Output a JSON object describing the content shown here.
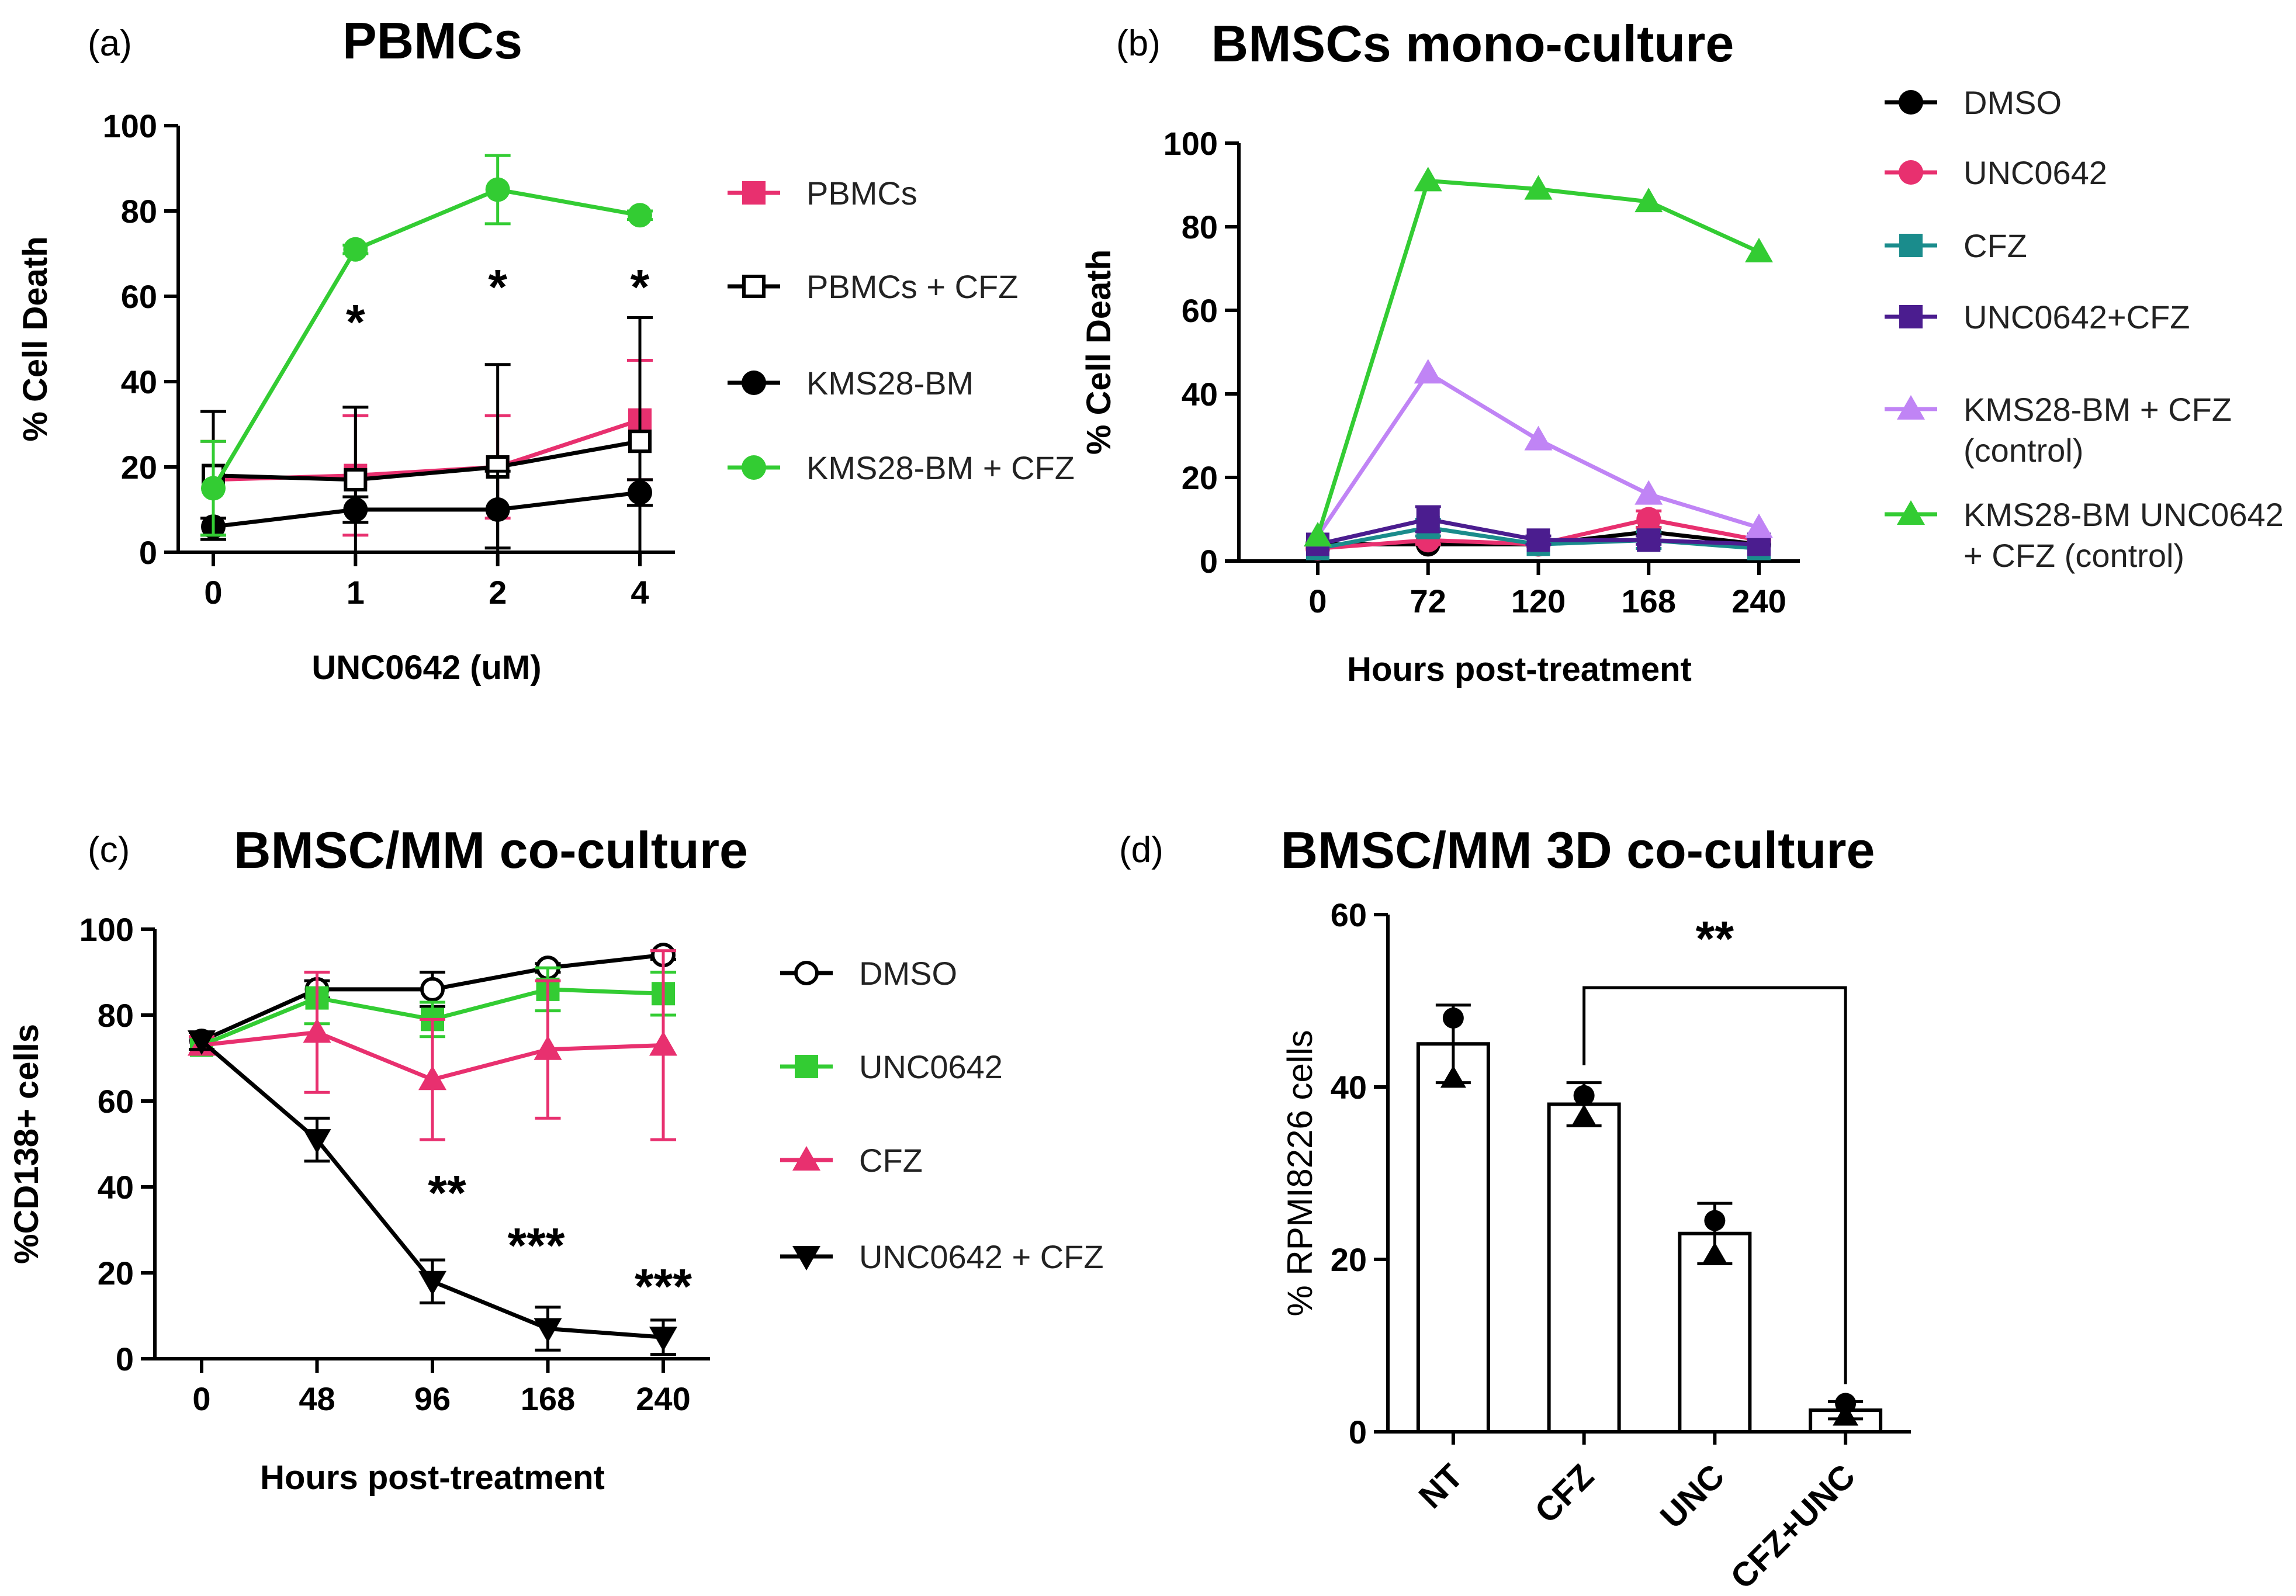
{
  "chart_data": [
    {
      "panel_label": "(a)",
      "type": "line",
      "title": "PBMCs",
      "xlabel": "UNC0642 (uM)",
      "ylabel": "% Cell Death",
      "categories": [
        "0",
        "1",
        "2",
        "4"
      ],
      "ylim": [
        0,
        100
      ],
      "yticks": [
        "0",
        "20",
        "40",
        "60",
        "80",
        "100"
      ],
      "series": [
        {
          "name": "PBMCs",
          "color": "#e8306f",
          "marker": "square",
          "values": [
            17,
            18,
            20,
            31
          ],
          "errors": [
            9,
            14,
            12,
            14
          ]
        },
        {
          "name": "PBMCs + CFZ",
          "color": "#000000",
          "marker": "open-square",
          "values": [
            18,
            17,
            20,
            26
          ],
          "errors": [
            15,
            17,
            24,
            29
          ]
        },
        {
          "name": "KMS28-BM",
          "color": "#000000",
          "marker": "circle",
          "values": [
            6,
            10,
            10,
            14
          ],
          "errors": [
            2,
            3,
            9,
            3
          ]
        },
        {
          "name": "KMS28-BM + CFZ",
          "color": "#33cc33",
          "marker": "circle",
          "values": [
            15,
            71,
            85,
            79
          ],
          "errors": [
            11,
            1,
            8,
            1
          ]
        }
      ],
      "annotations": [
        {
          "text": "*",
          "category": "1"
        },
        {
          "text": "*",
          "category": "2"
        },
        {
          "text": "*",
          "category": "4"
        }
      ]
    },
    {
      "panel_label": "(b)",
      "type": "line",
      "title": "BMSCs mono-culture",
      "xlabel": "Hours post-treatment",
      "ylabel": "% Cell Death",
      "categories": [
        "0",
        "72",
        "120",
        "168",
        "240"
      ],
      "ylim": [
        0,
        100
      ],
      "yticks": [
        "0",
        "20",
        "40",
        "60",
        "80",
        "100"
      ],
      "series": [
        {
          "name": "DMSO",
          "color": "#000000",
          "marker": "circle",
          "values": [
            4,
            4,
            4,
            7,
            4
          ],
          "errors": [
            0,
            0,
            0,
            1,
            0
          ]
        },
        {
          "name": "UNC0642",
          "color": "#e8306f",
          "marker": "circle",
          "values": [
            3,
            5,
            4,
            10,
            5
          ],
          "errors": [
            0,
            1,
            0,
            2,
            0
          ]
        },
        {
          "name": "CFZ",
          "color": "#1a8c8c",
          "marker": "square",
          "values": [
            3,
            8,
            4,
            5,
            3
          ],
          "errors": [
            0,
            2,
            0,
            2,
            0
          ]
        },
        {
          "name": "UNC0642+CFZ",
          "color": "#4b1d8f",
          "marker": "square",
          "values": [
            4,
            10,
            5,
            5,
            4
          ],
          "errors": [
            0,
            3,
            1,
            1,
            0
          ]
        },
        {
          "name": "KMS28-BM + CFZ",
          "name_line2": "(control)",
          "color": "#c084f5",
          "marker": "triangle",
          "values": [
            6,
            45,
            29,
            16,
            8
          ],
          "errors": [
            0,
            0,
            0,
            0,
            0
          ]
        },
        {
          "name": "KMS28-BM UNC0642",
          "name_line2": "+ CFZ (control)",
          "color": "#33cc33",
          "marker": "triangle",
          "values": [
            6,
            91,
            89,
            86,
            74
          ],
          "errors": [
            0,
            0,
            0,
            0,
            0
          ]
        }
      ]
    },
    {
      "panel_label": "(c)",
      "type": "line",
      "title": "BMSC/MM co-culture",
      "xlabel": "Hours post-treatment",
      "ylabel": "%CD138+ cells",
      "categories": [
        "0",
        "48",
        "96",
        "168",
        "240"
      ],
      "ylim": [
        0,
        100
      ],
      "yticks": [
        "0",
        "20",
        "40",
        "60",
        "80",
        "100"
      ],
      "series": [
        {
          "name": "DMSO",
          "color": "#000000",
          "marker": "open-circle",
          "values": [
            74,
            86,
            86,
            91,
            94
          ],
          "errors": [
            2,
            2,
            4,
            1,
            1
          ]
        },
        {
          "name": "UNC0642",
          "color": "#33cc33",
          "marker": "square",
          "values": [
            73,
            84,
            79,
            86,
            85
          ],
          "errors": [
            2,
            6,
            4,
            5,
            5
          ]
        },
        {
          "name": "CFZ",
          "color": "#e8306f",
          "marker": "triangle",
          "values": [
            73,
            76,
            65,
            72,
            73
          ],
          "errors": [
            2,
            14,
            14,
            16,
            22
          ]
        },
        {
          "name": "UNC0642 + CFZ",
          "color": "#000000",
          "marker": "triangle-down",
          "values": [
            74,
            51,
            18,
            7,
            5
          ],
          "errors": [
            2,
            5,
            5,
            5,
            4
          ]
        }
      ],
      "annotations": [
        {
          "text": "**",
          "category": "96"
        },
        {
          "text": "***",
          "category": "168"
        },
        {
          "text": "***",
          "category": "240"
        }
      ]
    },
    {
      "panel_label": "(d)",
      "type": "bar",
      "title": "BMSC/MM 3D co-culture",
      "xlabel": "",
      "ylabel": "% RPMI8226 cells",
      "categories": [
        "NT",
        "CFZ",
        "UNC",
        "CFZ+UNC"
      ],
      "values": [
        45,
        38,
        23,
        2.5
      ],
      "errors": [
        4.5,
        2.5,
        3.5,
        1
      ],
      "points": [
        [
          48,
          41
        ],
        [
          39,
          36.5
        ],
        [
          24.5,
          20.5
        ],
        [
          3.3,
          1.8
        ]
      ],
      "ylim": [
        0,
        60
      ],
      "yticks": [
        "0",
        "20",
        "40",
        "60"
      ],
      "annotations": [
        {
          "text": "**",
          "from": "CFZ",
          "to": "CFZ+UNC"
        }
      ]
    }
  ]
}
